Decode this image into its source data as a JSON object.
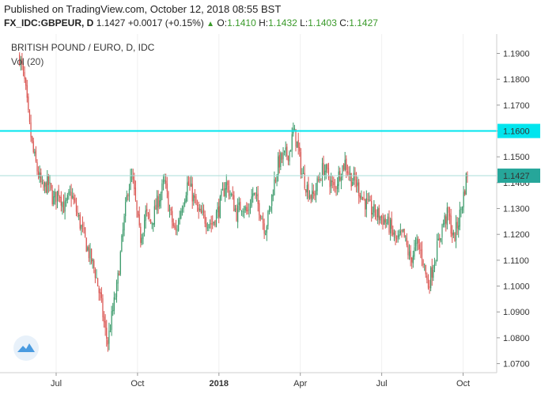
{
  "header": {
    "published": "Published on TradingView.com, October 12, 2018 08:55 BST",
    "symbol": "FX_IDC:GBPEUR, D",
    "last": "1.1427",
    "change": "+0.0017 (+0.15%)",
    "o_label": "O:",
    "o_val": "1.1410",
    "h_label": "H:",
    "h_val": "1.1432",
    "l_label": "L:",
    "l_val": "1.1403",
    "c_label": "C:",
    "c_val": "1.1427"
  },
  "chart_data": {
    "type": "candlestick",
    "title": "BRITISH POUND / EURO, D, IDC",
    "subtitle": "Vol (20)",
    "y_ticks": [
      "1.1900",
      "1.1800",
      "1.1700",
      "1.1600",
      "1.1500",
      "1.1400",
      "1.1300",
      "1.1200",
      "1.1100",
      "1.1000",
      "1.0900",
      "1.0800",
      "1.0700"
    ],
    "ylim": [
      1.0665,
      1.1975
    ],
    "x_ticks": [
      {
        "label": "Jul",
        "month": 0
      },
      {
        "label": "Oct",
        "month": 3
      },
      {
        "label": "2018",
        "month": 6,
        "bold": true
      },
      {
        "label": "Apr",
        "month": 9
      },
      {
        "label": "Jul",
        "month": 12
      },
      {
        "label": "Oct",
        "month": 15
      }
    ],
    "horizontal_line": {
      "value": 1.16,
      "label": "1.1600",
      "color": "#00e5ee"
    },
    "last_price": {
      "value": 1.1427,
      "label": "1.1427",
      "color": "#26a69a"
    },
    "up_color": "#3a9a6a",
    "down_color": "#d9534f",
    "close_path": [
      [
        -1.35,
        1.189
      ],
      [
        -1.15,
        1.178
      ],
      [
        -1.0,
        1.163
      ],
      [
        -0.85,
        1.152
      ],
      [
        -0.7,
        1.145
      ],
      [
        -0.5,
        1.137
      ],
      [
        -0.3,
        1.14
      ],
      [
        -0.1,
        1.133
      ],
      [
        0.1,
        1.137
      ],
      [
        0.3,
        1.13
      ],
      [
        0.55,
        1.136
      ],
      [
        0.8,
        1.127
      ],
      [
        1.0,
        1.12
      ],
      [
        1.2,
        1.113
      ],
      [
        1.45,
        1.105
      ],
      [
        1.65,
        1.094
      ],
      [
        1.8,
        1.083
      ],
      [
        1.9,
        1.078
      ],
      [
        2.05,
        1.088
      ],
      [
        2.25,
        1.1
      ],
      [
        2.45,
        1.12
      ],
      [
        2.65,
        1.138
      ],
      [
        2.8,
        1.142
      ],
      [
        2.95,
        1.13
      ],
      [
        3.1,
        1.118
      ],
      [
        3.3,
        1.128
      ],
      [
        3.5,
        1.124
      ],
      [
        3.75,
        1.133
      ],
      [
        4.0,
        1.14
      ],
      [
        4.2,
        1.128
      ],
      [
        4.4,
        1.12
      ],
      [
        4.65,
        1.132
      ],
      [
        4.85,
        1.14
      ],
      [
        5.0,
        1.136
      ],
      [
        5.25,
        1.128
      ],
      [
        5.5,
        1.126
      ],
      [
        5.75,
        1.124
      ],
      [
        6.0,
        1.13
      ],
      [
        6.25,
        1.14
      ],
      [
        6.45,
        1.135
      ],
      [
        6.65,
        1.128
      ],
      [
        6.85,
        1.132
      ],
      [
        7.05,
        1.128
      ],
      [
        7.25,
        1.136
      ],
      [
        7.5,
        1.13
      ],
      [
        7.7,
        1.122
      ],
      [
        7.85,
        1.128
      ],
      [
        8.0,
        1.138
      ],
      [
        8.2,
        1.148
      ],
      [
        8.4,
        1.15
      ],
      [
        8.6,
        1.152
      ],
      [
        8.75,
        1.16
      ],
      [
        8.9,
        1.154
      ],
      [
        9.05,
        1.144
      ],
      [
        9.25,
        1.138
      ],
      [
        9.45,
        1.134
      ],
      [
        9.65,
        1.14
      ],
      [
        9.85,
        1.146
      ],
      [
        10.05,
        1.142
      ],
      [
        10.25,
        1.137
      ],
      [
        10.45,
        1.144
      ],
      [
        10.65,
        1.148
      ],
      [
        10.85,
        1.142
      ],
      [
        11.05,
        1.14
      ],
      [
        11.3,
        1.134
      ],
      [
        11.55,
        1.13
      ],
      [
        11.8,
        1.128
      ],
      [
        12.05,
        1.126
      ],
      [
        12.3,
        1.123
      ],
      [
        12.55,
        1.117
      ],
      [
        12.8,
        1.12
      ],
      [
        13.05,
        1.11
      ],
      [
        13.3,
        1.116
      ],
      [
        13.5,
        1.112
      ],
      [
        13.7,
        1.1
      ],
      [
        13.85,
        1.106
      ],
      [
        14.05,
        1.115
      ],
      [
        14.25,
        1.124
      ],
      [
        14.45,
        1.128
      ],
      [
        14.65,
        1.118
      ],
      [
        14.85,
        1.126
      ],
      [
        15.0,
        1.134
      ],
      [
        15.15,
        1.144
      ],
      [
        15.2,
        1.143
      ]
    ]
  }
}
